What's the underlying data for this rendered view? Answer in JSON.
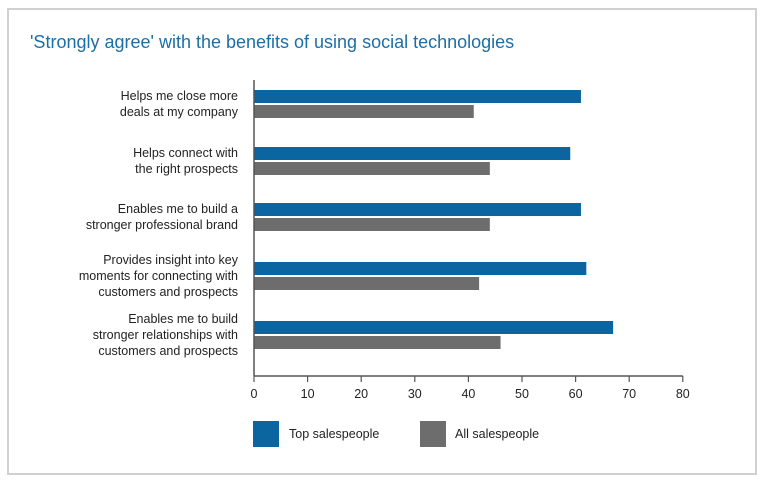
{
  "chart_data": {
    "type": "bar",
    "orientation": "horizontal",
    "title": "'Strongly agree' with the benefits of using social technologies",
    "categories": [
      [
        "Helps me close more",
        "deals at my company"
      ],
      [
        "Helps connect with",
        "the right prospects"
      ],
      [
        "Enables me to build a",
        "stronger professional brand"
      ],
      [
        "Provides insight into key",
        "moments for connecting with",
        "customers and prospects"
      ],
      [
        "Enables me to build",
        "stronger relationships with",
        "customers and prospects"
      ]
    ],
    "series": [
      {
        "name": "Top salespeople",
        "color": "#0a65a1",
        "values": [
          61,
          59,
          61,
          62,
          67
        ]
      },
      {
        "name": "All salespeople",
        "color": "#6d6d6d",
        "values": [
          41,
          44,
          44,
          42,
          46
        ]
      }
    ],
    "xlim": [
      0,
      80
    ],
    "xticks": [
      "0",
      "10",
      "20",
      "30",
      "40",
      "50",
      "60",
      "70",
      "80"
    ],
    "xlabel": "",
    "ylabel": "",
    "grid": false,
    "legend_position": "bottom-left"
  }
}
